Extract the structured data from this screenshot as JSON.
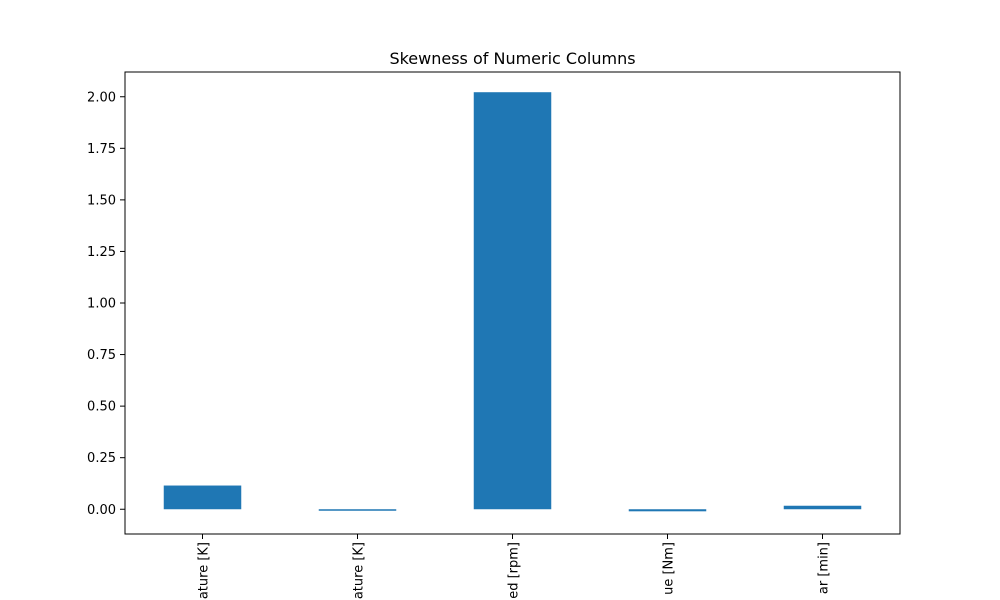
{
  "chart_data": {
    "type": "bar",
    "title": "Skewness of Numeric Columns",
    "xlabel": "",
    "ylabel": "",
    "categories": [
      "Air temperature [K]",
      "Process temperature [K]",
      "Rotational speed [rpm]",
      "Torque [Nm]",
      "Tool wear [min]"
    ],
    "visible_labels": [
      "ature [K]",
      "ature [K]",
      "ed [rpm]",
      "ue [Nm]",
      "ar [min]"
    ],
    "values": [
      0.115,
      -0.004,
      2.022,
      -0.01,
      0.017
    ],
    "ylim": [
      -0.12,
      2.12
    ],
    "yticks": [
      "0.00",
      "0.25",
      "0.50",
      "0.75",
      "1.00",
      "1.25",
      "1.50",
      "1.75",
      "2.00"
    ],
    "ytick_values": [
      0,
      0.25,
      0.5,
      0.75,
      1.0,
      1.25,
      1.5,
      1.75,
      2.0
    ],
    "grid": false,
    "bar_color": "#1f77b4"
  }
}
